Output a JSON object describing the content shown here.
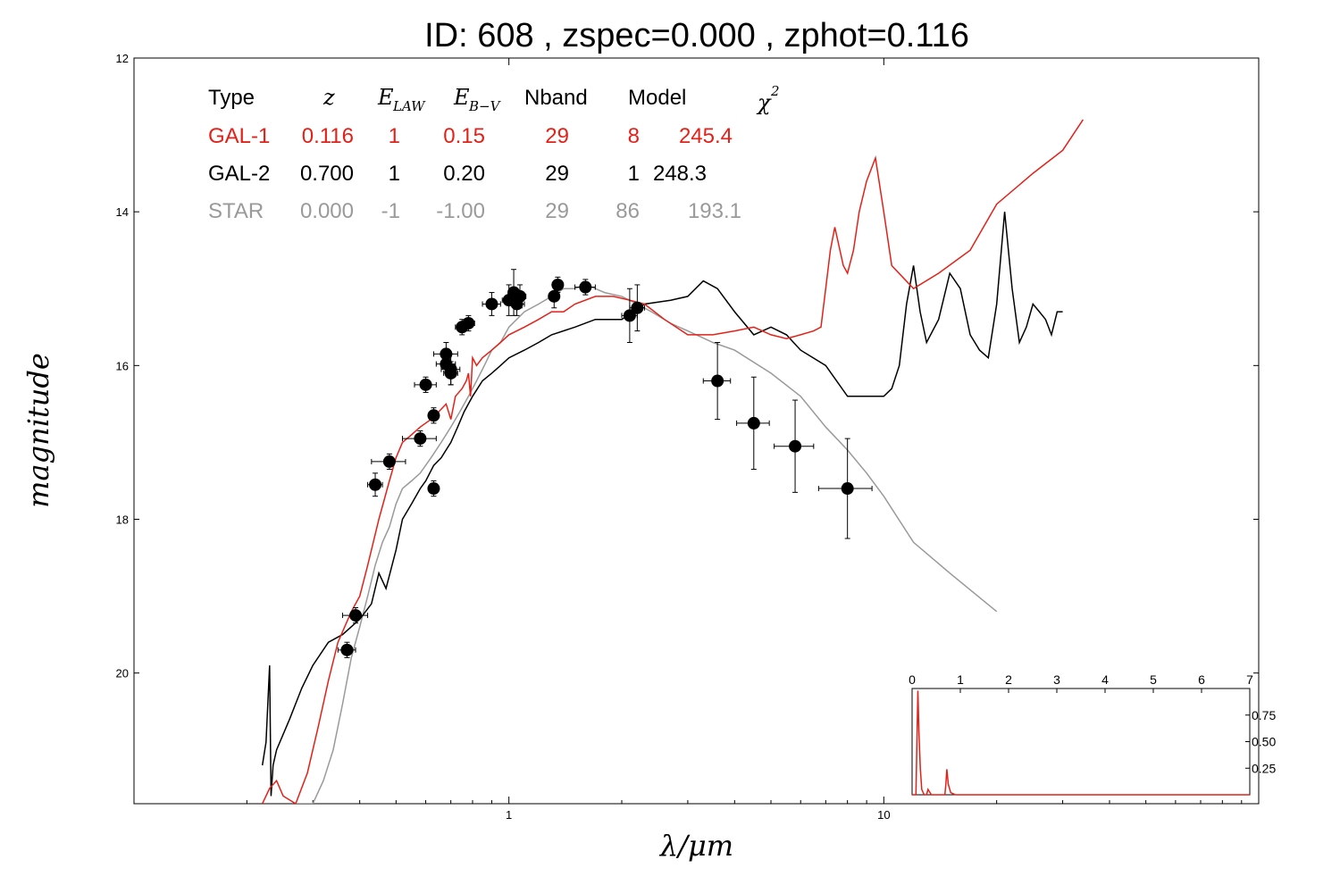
{
  "chart_data": [
    {
      "type": "line",
      "title": "ID:  608   , zspec=0.000 , zphot=0.116",
      "xlabel": "λ/μm",
      "ylabel": "magnitude",
      "xscale": "log",
      "yinverted": true,
      "xlim": [
        0.1,
        100
      ],
      "ylim": [
        21.7,
        12
      ],
      "xticks": [
        1,
        10
      ],
      "xtick_labels": [
        "1",
        "10"
      ],
      "yticks": [
        12,
        14,
        16,
        18,
        20
      ],
      "ytick_labels": [
        "12",
        "14",
        "16",
        "18",
        "20"
      ],
      "grid": false,
      "legend_table": {
        "placement": "top-left",
        "headers": [
          "Type",
          "z",
          "E_LAW",
          "E_B-V",
          "Nband",
          "Model",
          "χ2"
        ],
        "rows": [
          {
            "type": "GAL-1",
            "z": "0.116",
            "elaw": "1",
            "ebv": "0.15",
            "nband": "29",
            "model": "8",
            "chi2": "245.4",
            "color": "#e32119"
          },
          {
            "type": "GAL-2",
            "z": "0.700",
            "elaw": "1",
            "ebv": "0.20",
            "nband": "29",
            "model": "1",
            "chi2": "248.3",
            "color": "#000000"
          },
          {
            "type": "STAR",
            "z": "0.000",
            "elaw": "-1",
            "ebv": "-1.00",
            "nband": "29",
            "model": "86",
            "chi2": "193.1",
            "color": "#9a9a9a"
          }
        ]
      },
      "series": [
        {
          "color": "#e32119",
          "x": [
            0.22,
            0.23,
            0.24,
            0.25,
            0.27,
            0.29,
            0.31,
            0.33,
            0.35,
            0.38,
            0.4,
            0.42,
            0.45,
            0.48,
            0.5,
            0.52,
            0.55,
            0.58,
            0.62,
            0.65,
            0.68,
            0.7,
            0.72,
            0.75,
            0.77,
            0.78,
            0.79,
            0.8,
            0.82,
            0.85,
            0.9,
            0.95,
            1.0,
            1.1,
            1.2,
            1.3,
            1.4,
            1.5,
            1.7,
            1.9,
            2.1,
            2.3,
            2.6,
            3.0,
            3.5,
            4.0,
            4.5,
            5.0,
            5.5,
            6.0,
            6.5,
            6.8,
            7.0,
            7.2,
            7.4,
            7.8,
            8.0,
            8.3,
            8.6,
            9.0,
            9.5,
            10.0,
            10.5,
            12.0,
            14.0,
            17.0,
            20.0,
            25.0,
            30.0,
            34.0
          ],
          "y": [
            21.7,
            21.5,
            21.4,
            21.6,
            21.7,
            21.3,
            20.7,
            20.1,
            19.6,
            19.2,
            19.0,
            18.6,
            18.0,
            17.5,
            17.2,
            17.0,
            16.9,
            16.8,
            16.7,
            16.6,
            16.5,
            16.7,
            16.4,
            16.3,
            16.2,
            16.1,
            16.4,
            15.9,
            16.0,
            15.9,
            15.8,
            15.7,
            15.6,
            15.5,
            15.4,
            15.3,
            15.3,
            15.2,
            15.1,
            15.1,
            15.15,
            15.2,
            15.4,
            15.6,
            15.6,
            15.55,
            15.5,
            15.6,
            15.65,
            15.6,
            15.55,
            15.5,
            15.0,
            14.5,
            14.2,
            14.7,
            14.8,
            14.5,
            14.0,
            13.6,
            13.3,
            14.0,
            14.7,
            15.0,
            14.8,
            14.5,
            13.9,
            13.5,
            13.2,
            12.8
          ]
        },
        {
          "color": "#000000",
          "x": [
            0.22,
            0.225,
            0.23,
            0.232,
            0.235,
            0.24,
            0.26,
            0.28,
            0.3,
            0.33,
            0.36,
            0.4,
            0.43,
            0.45,
            0.47,
            0.5,
            0.52,
            0.55,
            0.58,
            0.6,
            0.63,
            0.66,
            0.7,
            0.73,
            0.76,
            0.8,
            0.85,
            0.9,
            0.95,
            1.0,
            1.1,
            1.2,
            1.3,
            1.5,
            1.7,
            2.0,
            2.3,
            2.7,
            3.0,
            3.3,
            3.6,
            4.0,
            4.5,
            5.0,
            5.5,
            6.0,
            7.0,
            8.0,
            9.0,
            10.0,
            10.5,
            11.0,
            11.5,
            12.0,
            12.5,
            13.0,
            14.0,
            15.0,
            16.0,
            17.0,
            18.0,
            19.0,
            20.0,
            21.0,
            22.0,
            23.0,
            24.0,
            25.0,
            26.0,
            27.0,
            28.0,
            29.0,
            30.0
          ],
          "y": [
            21.2,
            20.9,
            19.9,
            21.6,
            21.2,
            21.0,
            20.6,
            20.2,
            19.9,
            19.6,
            19.5,
            19.3,
            19.1,
            18.7,
            18.9,
            18.4,
            18.0,
            17.8,
            17.6,
            17.5,
            17.3,
            17.2,
            17.0,
            16.8,
            16.6,
            16.4,
            16.2,
            16.1,
            16.0,
            15.9,
            15.8,
            15.7,
            15.6,
            15.5,
            15.4,
            15.4,
            15.2,
            15.15,
            15.1,
            14.9,
            15.0,
            15.3,
            15.6,
            15.5,
            15.6,
            15.8,
            16.0,
            16.4,
            16.4,
            16.4,
            16.3,
            16.0,
            15.2,
            14.7,
            15.3,
            15.7,
            15.4,
            14.8,
            15.0,
            15.6,
            15.8,
            15.9,
            15.2,
            14.0,
            15.0,
            15.7,
            15.5,
            15.2,
            15.3,
            15.4,
            15.6,
            15.3,
            15.3
          ]
        },
        {
          "color": "#9a9a9a",
          "x": [
            0.27,
            0.3,
            0.32,
            0.34,
            0.36,
            0.38,
            0.4,
            0.42,
            0.44,
            0.46,
            0.48,
            0.5,
            0.52,
            0.55,
            0.58,
            0.62,
            0.66,
            0.7,
            0.74,
            0.78,
            0.82,
            0.86,
            0.9,
            0.95,
            1.0,
            1.1,
            1.2,
            1.3,
            1.4,
            1.5,
            1.6,
            1.7,
            1.8,
            2.0,
            2.2,
            2.4,
            2.7,
            3.0,
            3.5,
            4.0,
            5.0,
            6.0,
            7.0,
            8.0,
            9.0,
            10.0,
            12.0,
            15.0,
            20.0
          ],
          "y": [
            21.7,
            21.7,
            21.4,
            21.0,
            20.4,
            19.8,
            19.4,
            19.0,
            18.6,
            18.3,
            18.1,
            17.8,
            17.6,
            17.5,
            17.4,
            17.2,
            17.0,
            16.8,
            16.6,
            16.4,
            16.2,
            16.0,
            15.8,
            15.7,
            15.5,
            15.3,
            15.2,
            15.1,
            15.0,
            15.0,
            14.95,
            15.0,
            15.05,
            15.1,
            15.2,
            15.3,
            15.45,
            15.55,
            15.7,
            15.8,
            16.1,
            16.4,
            16.8,
            17.1,
            17.4,
            17.7,
            18.3,
            18.7,
            19.2
          ]
        }
      ],
      "points": [
        {
          "x": 0.37,
          "y": 19.7,
          "xerr": 0.02,
          "yerr": 0.1
        },
        {
          "x": 0.39,
          "y": 19.25,
          "xerr": 0.03,
          "yerr": 0.1
        },
        {
          "x": 0.44,
          "y": 17.55,
          "xerr": 0.02,
          "yerr": 0.15
        },
        {
          "x": 0.48,
          "y": 17.25,
          "xerr": 0.05,
          "yerr": 0.1
        },
        {
          "x": 0.58,
          "y": 16.95,
          "xerr": 0.06,
          "yerr": 0.1
        },
        {
          "x": 0.6,
          "y": 16.25,
          "xerr": 0.04,
          "yerr": 0.1
        },
        {
          "x": 0.63,
          "y": 16.65,
          "xerr": 0.02,
          "yerr": 0.1
        },
        {
          "x": 0.63,
          "y": 17.6,
          "xerr": 0.02,
          "yerr": 0.1
        },
        {
          "x": 0.68,
          "y": 15.85,
          "xerr": 0.05,
          "yerr": 0.15
        },
        {
          "x": 0.68,
          "y": 15.98,
          "xerr": 0.04,
          "yerr": 0.1
        },
        {
          "x": 0.7,
          "y": 16.05,
          "xerr": 0.04,
          "yerr": 0.2
        },
        {
          "x": 0.7,
          "y": 16.1,
          "xerr": 0.03,
          "yerr": 0.15
        },
        {
          "x": 0.75,
          "y": 15.5,
          "xerr": 0.03,
          "yerr": 0.1
        },
        {
          "x": 0.78,
          "y": 15.45,
          "xerr": 0.03,
          "yerr": 0.1
        },
        {
          "x": 0.9,
          "y": 15.2,
          "xerr": 0.05,
          "yerr": 0.15
        },
        {
          "x": 1.0,
          "y": 15.15,
          "xerr": 0.04,
          "yerr": 0.2
        },
        {
          "x": 1.03,
          "y": 15.05,
          "xerr": 0.03,
          "yerr": 0.3
        },
        {
          "x": 1.05,
          "y": 15.2,
          "xerr": 0.05,
          "yerr": 0.15
        },
        {
          "x": 1.07,
          "y": 15.1,
          "xerr": 0.04,
          "yerr": 0.15
        },
        {
          "x": 1.32,
          "y": 15.1,
          "xerr": 0.03,
          "yerr": 0.15
        },
        {
          "x": 1.35,
          "y": 14.95,
          "xerr": 0.03,
          "yerr": 0.1
        },
        {
          "x": 1.6,
          "y": 14.98,
          "xerr": 0.1,
          "yerr": 0.1
        },
        {
          "x": 2.1,
          "y": 15.35,
          "xerr": 0.1,
          "yerr": 0.35
        },
        {
          "x": 2.2,
          "y": 15.25,
          "xerr": 0.1,
          "yerr": 0.3
        },
        {
          "x": 3.6,
          "y": 16.2,
          "xerr": 0.3,
          "yerr": 0.5
        },
        {
          "x": 4.5,
          "y": 16.75,
          "xerr": 0.45,
          "yerr": 0.6
        },
        {
          "x": 5.8,
          "y": 17.05,
          "xerr": 0.7,
          "yerr": 0.6
        },
        {
          "x": 8.0,
          "y": 17.6,
          "xerr": 1.3,
          "yerr": 0.65
        }
      ]
    },
    {
      "type": "line",
      "title": "",
      "xlim": [
        0,
        7
      ],
      "ylim": [
        0,
        1.0
      ],
      "xticks": [
        0,
        1,
        2,
        3,
        4,
        5,
        6,
        7
      ],
      "xtick_labels": [
        "0",
        "1",
        "2",
        "3",
        "4",
        "5",
        "6",
        "7"
      ],
      "yticks": [
        0.25,
        0.5,
        0.75
      ],
      "ytick_labels": [
        "0.25",
        "0.50",
        "0.75"
      ],
      "placement": "bottom-right inset",
      "series": [
        {
          "color": "#e32119",
          "x": [
            0.0,
            0.08,
            0.1,
            0.12,
            0.14,
            0.17,
            0.2,
            0.25,
            0.3,
            0.33,
            0.4,
            0.5,
            0.6,
            0.68,
            0.7,
            0.72,
            0.75,
            0.8,
            0.9,
            1.2,
            2,
            3,
            4,
            5,
            6,
            7
          ],
          "y": [
            0.0,
            0.0,
            0.5,
            0.98,
            0.6,
            0.25,
            0.05,
            0.0,
            0.0,
            0.05,
            0.0,
            0.0,
            0.0,
            0.0,
            0.1,
            0.24,
            0.1,
            0.02,
            0.0,
            0.0,
            0.0,
            0.0,
            0.0,
            0.0,
            0.0,
            0.0
          ]
        }
      ]
    }
  ]
}
